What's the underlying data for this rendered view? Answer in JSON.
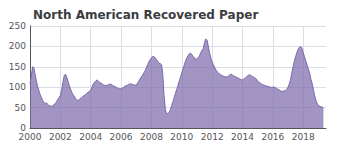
{
  "chart_data": {
    "type": "area",
    "title": "North American Recovered Paper",
    "color": "#7b68aa",
    "x": [
      2000.0,
      2000.08,
      2000.17,
      2000.25,
      2000.33,
      2000.42,
      2000.5,
      2000.58,
      2000.67,
      2000.75,
      2000.83,
      2000.92,
      2001.0,
      2001.08,
      2001.17,
      2001.25,
      2001.33,
      2001.42,
      2001.5,
      2001.58,
      2001.67,
      2001.75,
      2001.83,
      2001.92,
      2002.0,
      2002.08,
      2002.17,
      2002.25,
      2002.33,
      2002.42,
      2002.5,
      2002.58,
      2002.67,
      2002.75,
      2002.83,
      2002.92,
      2003.0,
      2003.08,
      2003.17,
      2003.25,
      2003.33,
      2003.42,
      2003.5,
      2003.58,
      2003.67,
      2003.75,
      2003.83,
      2003.92,
      2004.0,
      2004.08,
      2004.17,
      2004.25,
      2004.33,
      2004.42,
      2004.5,
      2004.58,
      2004.67,
      2004.75,
      2004.83,
      2004.92,
      2005.0,
      2005.08,
      2005.17,
      2005.25,
      2005.33,
      2005.42,
      2005.5,
      2005.58,
      2005.67,
      2005.75,
      2005.83,
      2005.92,
      2006.0,
      2006.08,
      2006.17,
      2006.25,
      2006.33,
      2006.42,
      2006.5,
      2006.58,
      2006.67,
      2006.75,
      2006.83,
      2006.92,
      2007.0,
      2007.08,
      2007.17,
      2007.25,
      2007.33,
      2007.42,
      2007.5,
      2007.58,
      2007.67,
      2007.75,
      2007.83,
      2007.92,
      2008.0,
      2008.08,
      2008.17,
      2008.25,
      2008.33,
      2008.42,
      2008.5,
      2008.58,
      2008.67,
      2008.75,
      2008.83,
      2008.92,
      2009.0,
      2009.08,
      2009.17,
      2009.25,
      2009.33,
      2009.42,
      2009.5,
      2009.58,
      2009.67,
      2009.75,
      2009.83,
      2009.92,
      2010.0,
      2010.08,
      2010.17,
      2010.25,
      2010.33,
      2010.42,
      2010.5,
      2010.58,
      2010.67,
      2010.75,
      2010.83,
      2010.92,
      2011.0,
      2011.08,
      2011.17,
      2011.25,
      2011.33,
      2011.42,
      2011.5,
      2011.58,
      2011.67,
      2011.75,
      2011.83,
      2011.92,
      2012.0,
      2012.08,
      2012.17,
      2012.25,
      2012.33,
      2012.42,
      2012.5,
      2012.58,
      2012.67,
      2012.75,
      2012.83,
      2012.92,
      2013.0,
      2013.08,
      2013.17,
      2013.25,
      2013.33,
      2013.42,
      2013.5,
      2013.58,
      2013.67,
      2013.75,
      2013.83,
      2013.92,
      2014.0,
      2014.08,
      2014.17,
      2014.25,
      2014.33,
      2014.42,
      2014.5,
      2014.58,
      2014.67,
      2014.75,
      2014.83,
      2014.92,
      2015.0,
      2015.08,
      2015.17,
      2015.25,
      2015.33,
      2015.42,
      2015.5,
      2015.58,
      2015.67,
      2015.75,
      2015.83,
      2015.92,
      2016.0,
      2016.08,
      2016.17,
      2016.25,
      2016.33,
      2016.42,
      2016.5,
      2016.58,
      2016.67,
      2016.75,
      2016.83,
      2016.92,
      2017.0,
      2017.08,
      2017.17,
      2017.25,
      2017.33,
      2017.42,
      2017.5,
      2017.58,
      2017.67,
      2017.75,
      2017.83,
      2017.92,
      2018.0,
      2018.08,
      2018.17,
      2018.25,
      2018.33,
      2018.42,
      2018.5,
      2018.58,
      2018.67,
      2018.75,
      2018.83,
      2018.92,
      2019.0,
      2019.17,
      2019.33
    ],
    "values": [
      108,
      125,
      150,
      148,
      132,
      115,
      102,
      92,
      82,
      75,
      68,
      63,
      60,
      62,
      58,
      55,
      54,
      53,
      55,
      57,
      60,
      65,
      70,
      75,
      80,
      92,
      112,
      128,
      132,
      125,
      115,
      105,
      95,
      88,
      82,
      78,
      72,
      68,
      68,
      70,
      73,
      75,
      78,
      80,
      82,
      85,
      88,
      90,
      93,
      100,
      108,
      112,
      115,
      118,
      115,
      112,
      110,
      108,
      106,
      105,
      104,
      105,
      106,
      108,
      107,
      105,
      103,
      102,
      100,
      98,
      97,
      96,
      96,
      98,
      100,
      102,
      104,
      105,
      107,
      108,
      108,
      107,
      106,
      105,
      105,
      110,
      115,
      120,
      125,
      130,
      135,
      140,
      148,
      155,
      162,
      168,
      172,
      175,
      175,
      172,
      168,
      163,
      158,
      158,
      155,
      130,
      80,
      45,
      35,
      35,
      38,
      45,
      55,
      65,
      75,
      85,
      95,
      105,
      115,
      125,
      135,
      145,
      155,
      165,
      172,
      178,
      182,
      183,
      180,
      175,
      172,
      170,
      168,
      172,
      178,
      185,
      190,
      195,
      210,
      218,
      215,
      200,
      185,
      170,
      162,
      155,
      148,
      142,
      138,
      135,
      132,
      130,
      128,
      127,
      126,
      125,
      125,
      128,
      130,
      132,
      130,
      128,
      126,
      125,
      123,
      122,
      120,
      118,
      118,
      120,
      122,
      125,
      128,
      130,
      130,
      128,
      126,
      124,
      122,
      120,
      115,
      112,
      110,
      108,
      106,
      105,
      104,
      103,
      102,
      101,
      100,
      100,
      100,
      100,
      99,
      97,
      95,
      93,
      91,
      90,
      90,
      91,
      92,
      95,
      100,
      108,
      120,
      135,
      150,
      165,
      175,
      185,
      193,
      198,
      200,
      195,
      185,
      175,
      165,
      155,
      145,
      135,
      120,
      110,
      95,
      80,
      68,
      60,
      55,
      52,
      50
    ],
    "xlim": [
      2000,
      2019.5
    ],
    "xticks": [
      2000,
      2002,
      2004,
      2006,
      2008,
      2010,
      2012,
      2014,
      2016,
      2018
    ],
    "ylim": [
      0,
      250
    ],
    "yticks": [
      0,
      50,
      100,
      150,
      200,
      250
    ],
    "grid": true
  }
}
